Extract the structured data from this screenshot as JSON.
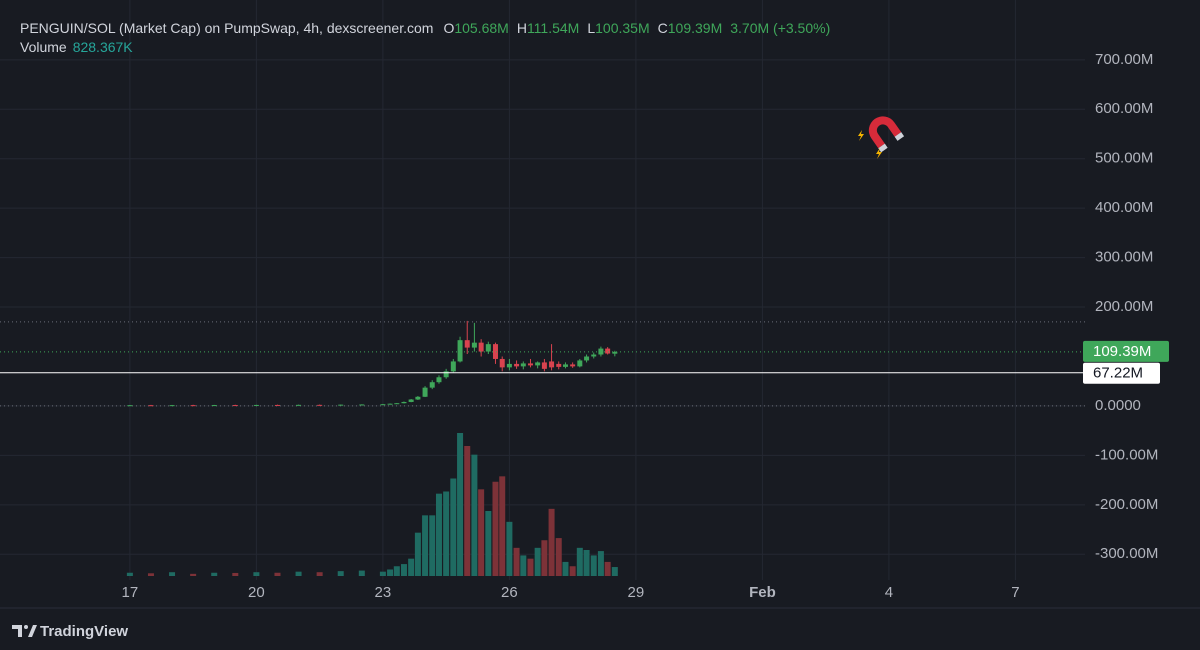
{
  "chart_data": {
    "type": "candlestick",
    "title": "PENGUIN/SOL (Market Cap) on PumpSwap, 4h, dexscreener.com",
    "ohlc_legend": [
      {
        "key": "O",
        "value": "105.68M"
      },
      {
        "key": "H",
        "value": "111.54M"
      },
      {
        "key": "L",
        "value": "100.35M"
      },
      {
        "key": "C",
        "value": "109.39M"
      }
    ],
    "change": "3.70M (+3.50%)",
    "volume_legend": {
      "key": "Volume",
      "value": "828.367K"
    },
    "x": [
      17,
      17.5,
      18,
      18.5,
      19,
      19.5,
      20,
      20.5,
      21,
      21.5,
      22,
      22.5,
      23,
      23.17,
      23.33,
      23.5,
      23.67,
      23.83,
      24,
      24.17,
      24.33,
      24.5,
      24.67,
      24.83,
      25,
      25.17,
      25.33,
      25.5,
      25.67,
      25.83,
      26,
      26.17,
      26.33,
      26.5,
      26.67,
      26.83,
      27,
      27.17,
      27.33,
      27.5,
      27.67,
      27.83,
      28,
      28.17,
      28.33,
      28.5
    ],
    "open": [
      1.2,
      1.5,
      1.3,
      1.6,
      1.4,
      1.8,
      1.6,
      2.0,
      1.9,
      2.2,
      2.1,
      2.6,
      3,
      3.5,
      4.5,
      5.5,
      8,
      13,
      18.5,
      37,
      48,
      58,
      70,
      90,
      133,
      118,
      128,
      110,
      125,
      95,
      78,
      85,
      80,
      86,
      82,
      88,
      90,
      85,
      79,
      84,
      80,
      92,
      100,
      104,
      116,
      105.68
    ],
    "high": [
      1.9,
      2.1,
      2.0,
      2.3,
      2.1,
      2.4,
      2.3,
      2.6,
      2.6,
      2.8,
      2.9,
      3.3,
      4,
      5,
      6,
      9,
      14,
      20,
      40,
      52,
      62,
      75,
      95,
      140,
      172,
      168,
      135,
      130,
      128,
      100,
      95,
      92,
      90,
      95,
      90,
      95,
      125,
      90,
      88,
      88,
      95,
      104,
      108,
      120,
      119,
      111.54
    ],
    "low": [
      0.8,
      1.0,
      0.9,
      1.1,
      1.0,
      1.3,
      1.2,
      1.5,
      1.5,
      1.7,
      1.7,
      2.1,
      2.5,
      3,
      4,
      5,
      7.5,
      12,
      18,
      34,
      45,
      55,
      68,
      88,
      105,
      110,
      100,
      105,
      85,
      70,
      72,
      75,
      74,
      78,
      76,
      70,
      72,
      74,
      76,
      77,
      78,
      88,
      96,
      100,
      104,
      100.35
    ],
    "close": [
      1.5,
      1.3,
      1.6,
      1.4,
      1.8,
      1.6,
      2.0,
      1.9,
      2.2,
      2.1,
      2.6,
      3.0,
      3.5,
      4.5,
      5.5,
      8,
      13,
      18.5,
      37,
      48,
      58,
      70,
      90,
      133,
      118,
      128,
      110,
      125,
      95,
      78,
      85,
      80,
      86,
      82,
      88,
      75,
      78,
      79,
      84,
      80,
      92,
      100,
      104,
      116,
      106,
      109.39
    ],
    "volume": [
      0.3,
      0.25,
      0.35,
      0.2,
      0.3,
      0.28,
      0.35,
      0.3,
      0.4,
      0.35,
      0.45,
      0.5,
      0.4,
      0.6,
      0.9,
      1.1,
      1.6,
      4.0,
      5.6,
      5.6,
      7.6,
      7.8,
      9.0,
      13.2,
      12.0,
      11.2,
      8.0,
      6.0,
      8.7,
      9.2,
      5.0,
      2.6,
      1.9,
      1.6,
      2.6,
      3.3,
      6.2,
      3.5,
      1.3,
      0.9,
      2.6,
      2.4,
      1.9,
      2.3,
      1.3,
      0.828367
    ],
    "up_color": "#3fa75a",
    "down_color": "#d9434f",
    "volume_up_color": "#1f6b62",
    "volume_down_color": "#7d3238",
    "xlim": [
      13.92,
      39.65
    ],
    "xticks": [
      17,
      20,
      23,
      26,
      29,
      {
        "value": 32,
        "label": "Feb"
      },
      {
        "value": 35,
        "label": "4"
      },
      {
        "value": 38,
        "label": "7"
      }
    ],
    "ylim": [
      -348,
      821
    ],
    "yticks": [
      {
        "value": 700,
        "label": "700.00M"
      },
      {
        "value": 600,
        "label": "600.00M"
      },
      {
        "value": 500,
        "label": "500.00M"
      },
      {
        "value": 400,
        "label": "400.00M"
      },
      {
        "value": 300,
        "label": "300.00M"
      },
      {
        "value": 200,
        "label": "200.00M"
      },
      {
        "value": 0,
        "label": "0.0000"
      },
      {
        "value": -100,
        "label": "-100.00M"
      },
      {
        "value": -200,
        "label": "-200.00M"
      },
      {
        "value": -300,
        "label": "-300.00M"
      }
    ],
    "price_lines": [
      {
        "value": 109.39,
        "label": "109.39M",
        "color": "#3fa75a"
      },
      {
        "value": 67.22,
        "label": "67.22M",
        "color": "#ffffff"
      }
    ],
    "range_lines": [
      170,
      0
    ],
    "grid": true,
    "brand": "TradingView"
  }
}
